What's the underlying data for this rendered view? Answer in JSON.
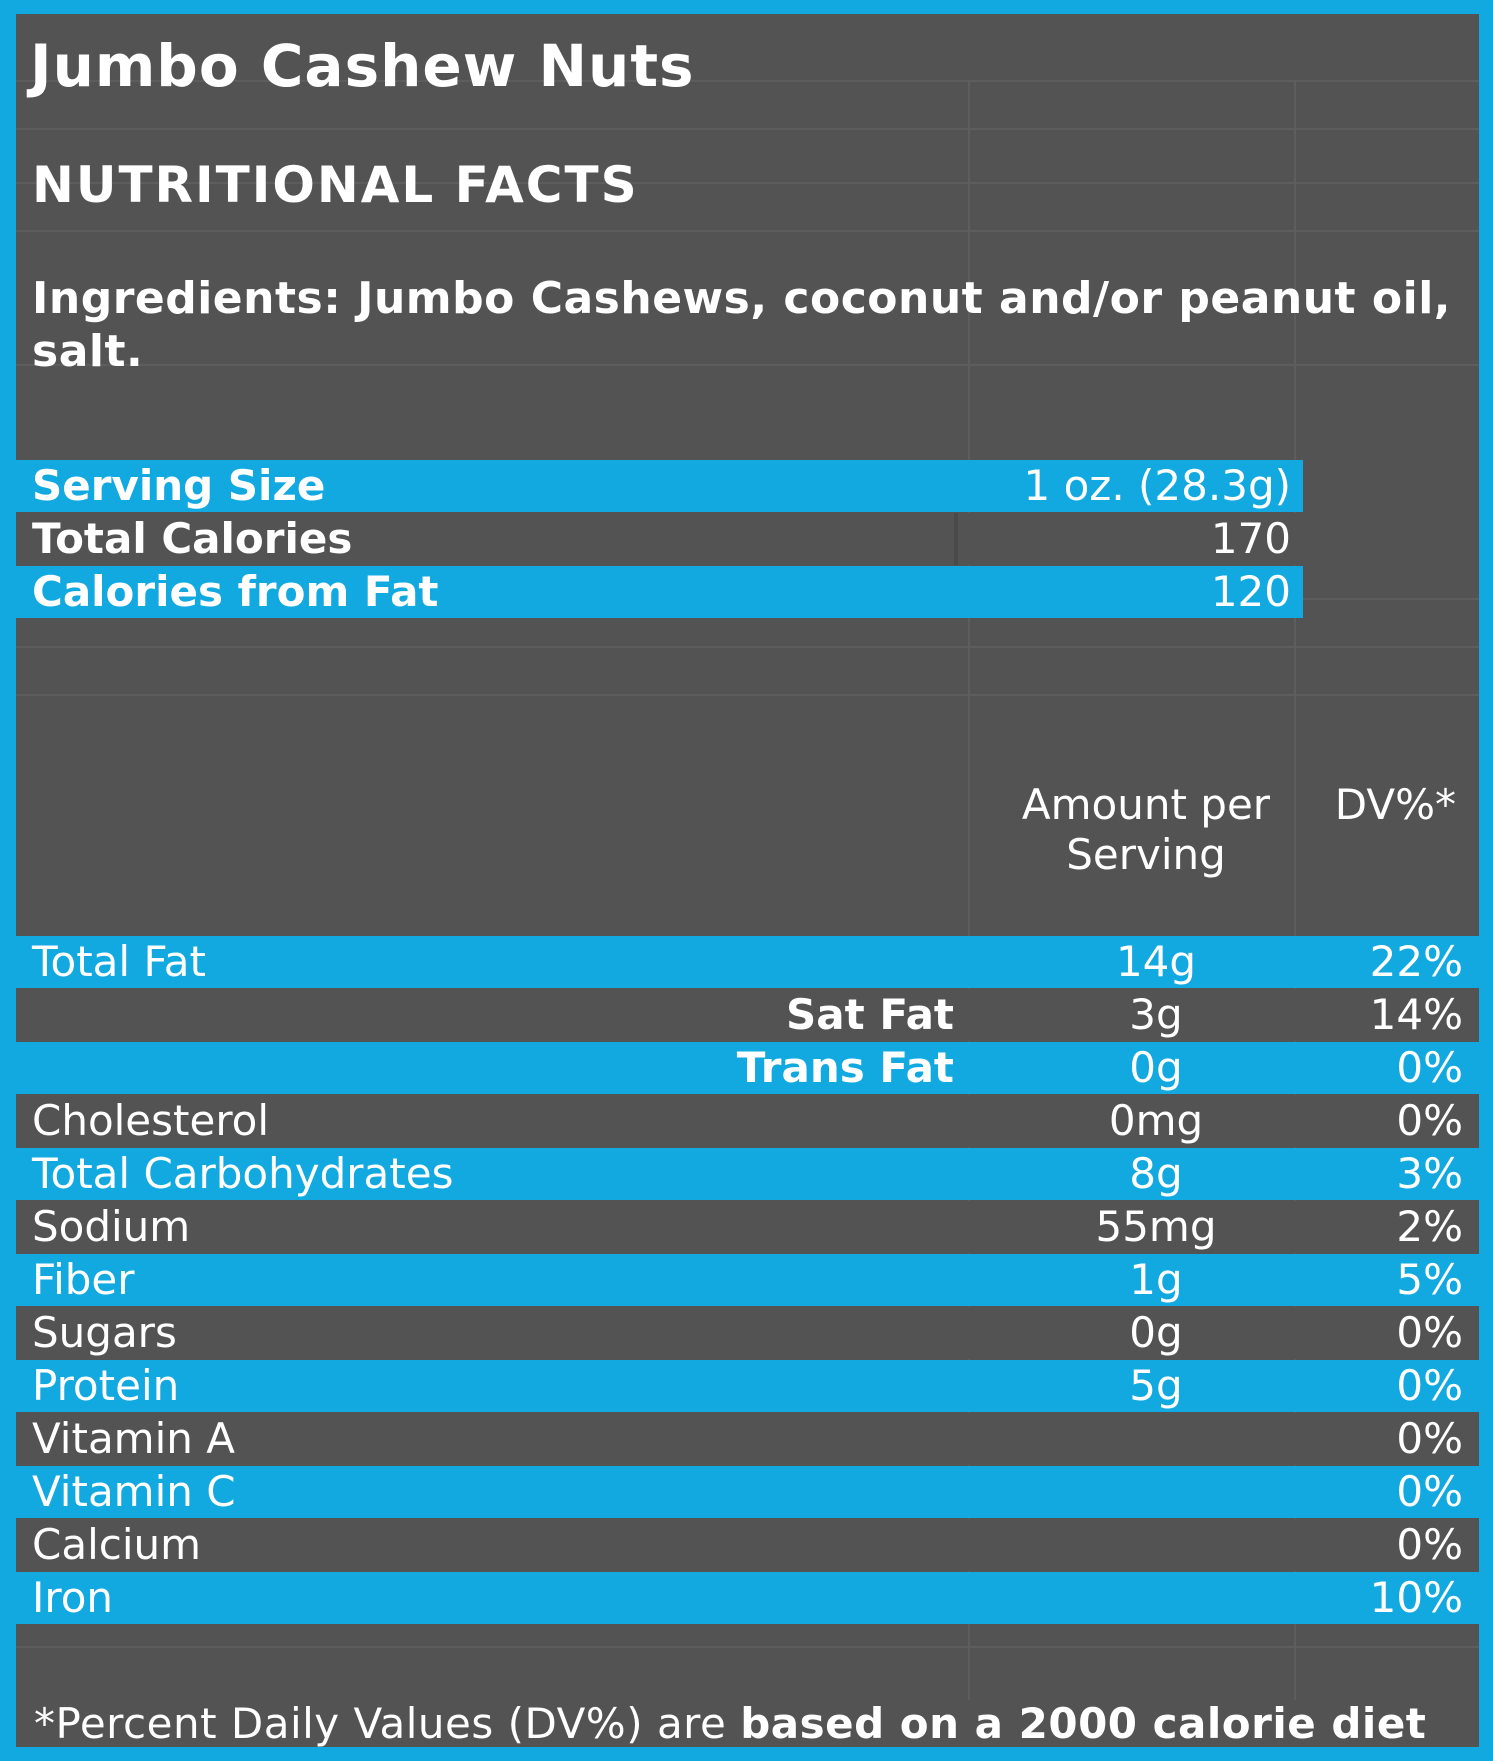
{
  "product": {
    "title": "Jumbo Cashew Nuts",
    "subtitle": "NUTRITIONAL FACTS",
    "ingredients": "Ingredients:  Jumbo Cashews, coconut and/or peanut oil, salt."
  },
  "summary": [
    {
      "label": "Serving Size",
      "value": "1 oz. (28.3g)"
    },
    {
      "label": "Total Calories",
      "value": "170"
    },
    {
      "label": "Calories from Fat",
      "value": "120"
    }
  ],
  "columns": {
    "amount_header": "Amount per Serving",
    "amount_header_line1": "Amount per",
    "amount_header_line2": "Serving",
    "dv_header": "DV%*"
  },
  "nutrients": [
    {
      "label": "Total Fat",
      "amount": "14g",
      "dv": "22%"
    },
    {
      "label": "Sat Fat",
      "amount": "3g",
      "dv": "14%"
    },
    {
      "label": "Trans Fat",
      "amount": "0g",
      "dv": "0%"
    },
    {
      "label": "Cholesterol",
      "amount": "0mg",
      "dv": "0%"
    },
    {
      "label": "Total Carbohydrates",
      "amount": "8g",
      "dv": "3%"
    },
    {
      "label": "Sodium",
      "amount": "55mg",
      "dv": "2%"
    },
    {
      "label": "Fiber",
      "amount": "1g",
      "dv": "5%"
    },
    {
      "label": "Sugars",
      "amount": "0g",
      "dv": "0%"
    },
    {
      "label": "Protein",
      "amount": "5g",
      "dv": "0%"
    },
    {
      "label": "Vitamin A",
      "amount": "",
      "dv": "0%"
    },
    {
      "label": "Vitamin C",
      "amount": "",
      "dv": "0%"
    },
    {
      "label": "Calcium",
      "amount": "",
      "dv": "0%"
    },
    {
      "label": "Iron",
      "amount": "",
      "dv": "10%"
    }
  ],
  "footnote": {
    "prefix": "*Percent Daily Values (DV%) are ",
    "bold": "based on a 2000 calorie diet"
  },
  "colors": {
    "accent_blue": "#12a9e1",
    "panel_gray": "#535353",
    "text": "#ffffff"
  }
}
